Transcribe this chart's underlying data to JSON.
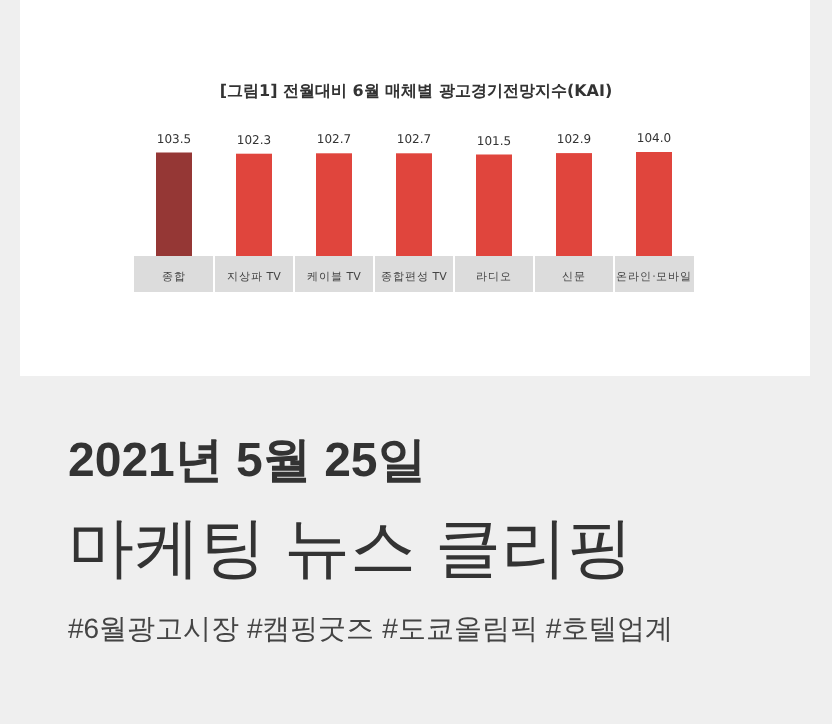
{
  "chart_data": {
    "type": "bar",
    "title": "[그림1] 전월대비 6월 매체별 광고경기전망지수(KAI)",
    "categories": [
      "종합",
      "지상파 TV",
      "케이블 TV",
      "종합편성 TV",
      "라디오",
      "신문",
      "온라인·모바일"
    ],
    "values": [
      103.5,
      102.3,
      102.7,
      102.7,
      101.5,
      102.9,
      104.0
    ],
    "colors": [
      "#953735",
      "#e0453d",
      "#e0453d",
      "#e0453d",
      "#e0453d",
      "#e0453d",
      "#e0453d"
    ],
    "value_labels": [
      "103.5",
      "102.3",
      "102.7",
      "102.7",
      "101.5",
      "102.9",
      "104.0"
    ],
    "annotations": [
      "2021년 5월 25일",
      "마케팅 뉴스 클리핑",
      "#6월광고시장 #캠핑굿즈 #도쿄올림픽 #호텔업계"
    ]
  }
}
